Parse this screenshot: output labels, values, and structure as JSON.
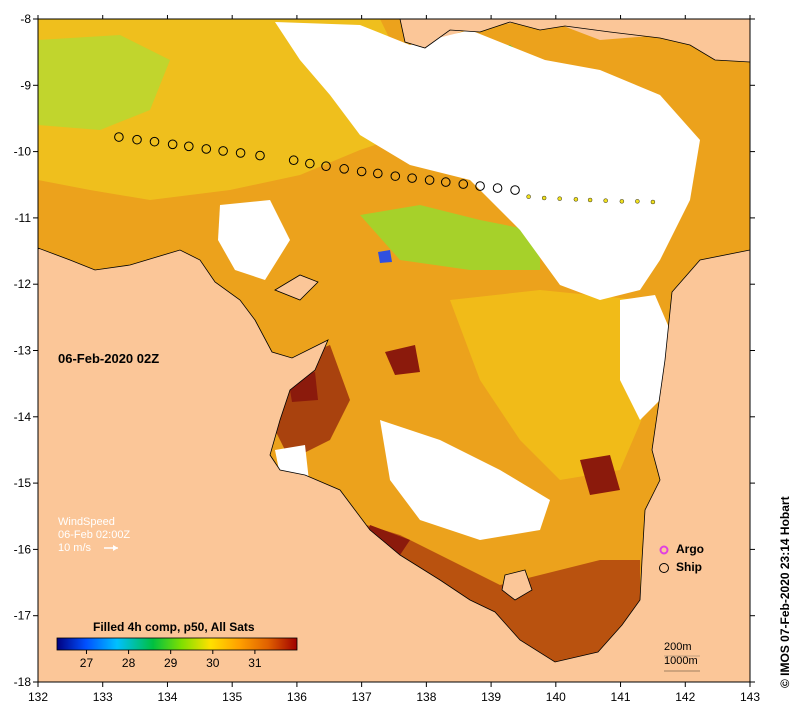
{
  "map": {
    "timestamp": "06-Feb-2020 02Z",
    "credit": "© IMOS 07-Feb-2020 23:14 Hobart",
    "x_ticks": [
      "132",
      "133",
      "134",
      "135",
      "136",
      "137",
      "138",
      "139",
      "140",
      "141",
      "142",
      "143"
    ],
    "y_ticks": [
      "-8",
      "-9",
      "-10",
      "-11",
      "-12",
      "-13",
      "-14",
      "-15",
      "-16",
      "-17",
      "-18"
    ],
    "lon_range": [
      132,
      143
    ],
    "lat_range": [
      -8,
      -18
    ]
  },
  "wind": {
    "title": "WindSpeed",
    "time": "06-Feb 02:00Z",
    "scale": "10 m/s"
  },
  "legend": {
    "argo": "Argo",
    "ship": "Ship",
    "argo_color": "#e040e0"
  },
  "colorbar": {
    "title": "Filled 4h comp, p50, All Sats",
    "ticks": [
      "27",
      "28",
      "29",
      "30",
      "31"
    ],
    "range": [
      26.3,
      32.0
    ],
    "stops": [
      "#000080",
      "#0050ff",
      "#00c0ff",
      "#00c040",
      "#80e000",
      "#ffe000",
      "#ffa000",
      "#e06000",
      "#a00000"
    ]
  },
  "contours": {
    "c200": "200m",
    "c1000": "1000m"
  },
  "colors": {
    "land": "#fbc698",
    "sst_orange": "#eb9018",
    "sst_dark": "#8b1a0c"
  },
  "ship_track": [
    {
      "lon": 133.25,
      "lat": -9.78
    },
    {
      "lon": 133.53,
      "lat": -9.82
    },
    {
      "lon": 133.8,
      "lat": -9.85
    },
    {
      "lon": 134.08,
      "lat": -9.89
    },
    {
      "lon": 134.33,
      "lat": -9.92
    },
    {
      "lon": 134.6,
      "lat": -9.96
    },
    {
      "lon": 134.86,
      "lat": -9.99
    },
    {
      "lon": 135.13,
      "lat": -10.02
    },
    {
      "lon": 135.43,
      "lat": -10.06
    },
    {
      "lon": 135.95,
      "lat": -10.13
    },
    {
      "lon": 136.2,
      "lat": -10.18
    },
    {
      "lon": 136.45,
      "lat": -10.22
    },
    {
      "lon": 136.73,
      "lat": -10.26
    },
    {
      "lon": 137.0,
      "lat": -10.3
    },
    {
      "lon": 137.25,
      "lat": -10.33
    },
    {
      "lon": 137.52,
      "lat": -10.37
    },
    {
      "lon": 137.78,
      "lat": -10.4
    },
    {
      "lon": 138.05,
      "lat": -10.43
    },
    {
      "lon": 138.3,
      "lat": -10.46
    },
    {
      "lon": 138.57,
      "lat": -10.49
    },
    {
      "lon": 138.83,
      "lat": -10.52
    },
    {
      "lon": 139.1,
      "lat": -10.55
    },
    {
      "lon": 139.37,
      "lat": -10.58
    },
    {
      "lon": 139.58,
      "lat": -10.68
    },
    {
      "lon": 139.82,
      "lat": -10.7
    },
    {
      "lon": 140.06,
      "lat": -10.71
    },
    {
      "lon": 140.31,
      "lat": -10.72
    },
    {
      "lon": 140.53,
      "lat": -10.73
    },
    {
      "lon": 140.77,
      "lat": -10.74
    },
    {
      "lon": 141.02,
      "lat": -10.75
    },
    {
      "lon": 141.26,
      "lat": -10.75
    },
    {
      "lon": 141.5,
      "lat": -10.76
    }
  ]
}
